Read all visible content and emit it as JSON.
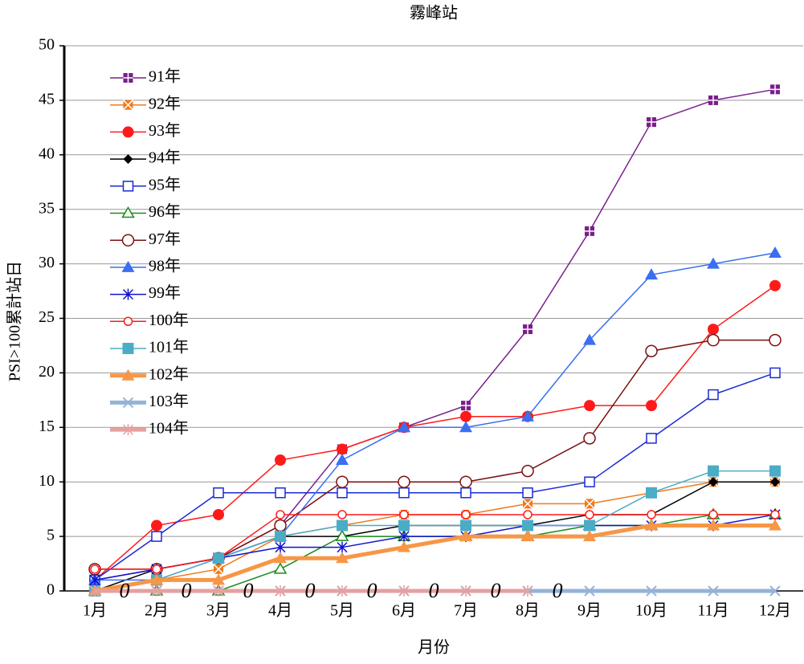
{
  "chart_data": {
    "type": "line",
    "title": "霧峰站",
    "xlabel": "月份",
    "ylabel": "PSI>100累計站日",
    "categories": [
      "1月",
      "2月",
      "3月",
      "4月",
      "5月",
      "6月",
      "7月",
      "8月",
      "9月",
      "10月",
      "11月",
      "12月"
    ],
    "ylim": [
      0,
      50
    ],
    "yticks": [
      0,
      5,
      10,
      15,
      20,
      25,
      30,
      35,
      40,
      45,
      50
    ],
    "grid": true,
    "legend": "upper left",
    "series": [
      {
        "name": "91年",
        "color": "#7a1f8c",
        "marker": "square-plus",
        "values": [
          1,
          2,
          3,
          6,
          13,
          15,
          17,
          24,
          33,
          43,
          45,
          46
        ]
      },
      {
        "name": "92年",
        "color": "#f07a1a",
        "marker": "square-x",
        "values": [
          0,
          1,
          2,
          5,
          6,
          7,
          7,
          8,
          8,
          9,
          10,
          10
        ]
      },
      {
        "name": "93年",
        "color": "#ff1a1a",
        "marker": "circle-filled",
        "values": [
          1,
          6,
          7,
          12,
          13,
          15,
          16,
          16,
          17,
          17,
          24,
          28
        ]
      },
      {
        "name": "94年",
        "color": "#000000",
        "marker": "diamond",
        "values": [
          0,
          2,
          3,
          5,
          5,
          6,
          6,
          6,
          7,
          7,
          10,
          10
        ]
      },
      {
        "name": "95年",
        "color": "#1a2bd6",
        "marker": "square-open",
        "values": [
          1,
          5,
          9,
          9,
          9,
          9,
          9,
          9,
          10,
          14,
          18,
          20
        ]
      },
      {
        "name": "96年",
        "color": "#1a8a1a",
        "marker": "triangle-open",
        "values": [
          0,
          0,
          0,
          2,
          5,
          5,
          5,
          5,
          6,
          6,
          7,
          7
        ]
      },
      {
        "name": "97年",
        "color": "#7a0f0f",
        "marker": "circle-open",
        "values": [
          2,
          2,
          3,
          6,
          10,
          10,
          10,
          11,
          14,
          22,
          23,
          23
        ]
      },
      {
        "name": "98年",
        "color": "#3a6ff0",
        "marker": "triangle-filled",
        "values": [
          1,
          1,
          3,
          5,
          12,
          15,
          15,
          16,
          23,
          29,
          30,
          31
        ]
      },
      {
        "name": "99年",
        "color": "#1010d0",
        "marker": "star",
        "values": [
          1,
          2,
          3,
          4,
          4,
          5,
          5,
          6,
          6,
          6,
          6,
          7
        ]
      },
      {
        "name": "100年",
        "color": "#ff1a1a",
        "marker": "circle-small",
        "values": [
          2,
          2,
          3,
          7,
          7,
          7,
          7,
          7,
          7,
          7,
          7,
          7
        ]
      },
      {
        "name": "101年",
        "color": "#4bacc6",
        "marker": "square-filled",
        "values": [
          0,
          1,
          3,
          5,
          6,
          6,
          6,
          6,
          6,
          9,
          11,
          11
        ]
      },
      {
        "name": "102年",
        "color": "#f79646",
        "marker": "triangle-filled",
        "width": 5,
        "values": [
          0,
          1,
          1,
          3,
          3,
          4,
          5,
          5,
          5,
          6,
          6,
          6
        ]
      },
      {
        "name": "103年",
        "color": "#95b3d7",
        "marker": "x",
        "width": 5,
        "values": [
          0,
          0,
          0,
          0,
          0,
          0,
          0,
          0,
          0,
          0,
          0,
          0
        ]
      },
      {
        "name": "104年",
        "color": "#e6a0a0",
        "marker": "star",
        "width": 5,
        "data_labels": true,
        "values": [
          0,
          0,
          0,
          0,
          0,
          0,
          0,
          0,
          null,
          null,
          null,
          null
        ]
      }
    ]
  }
}
